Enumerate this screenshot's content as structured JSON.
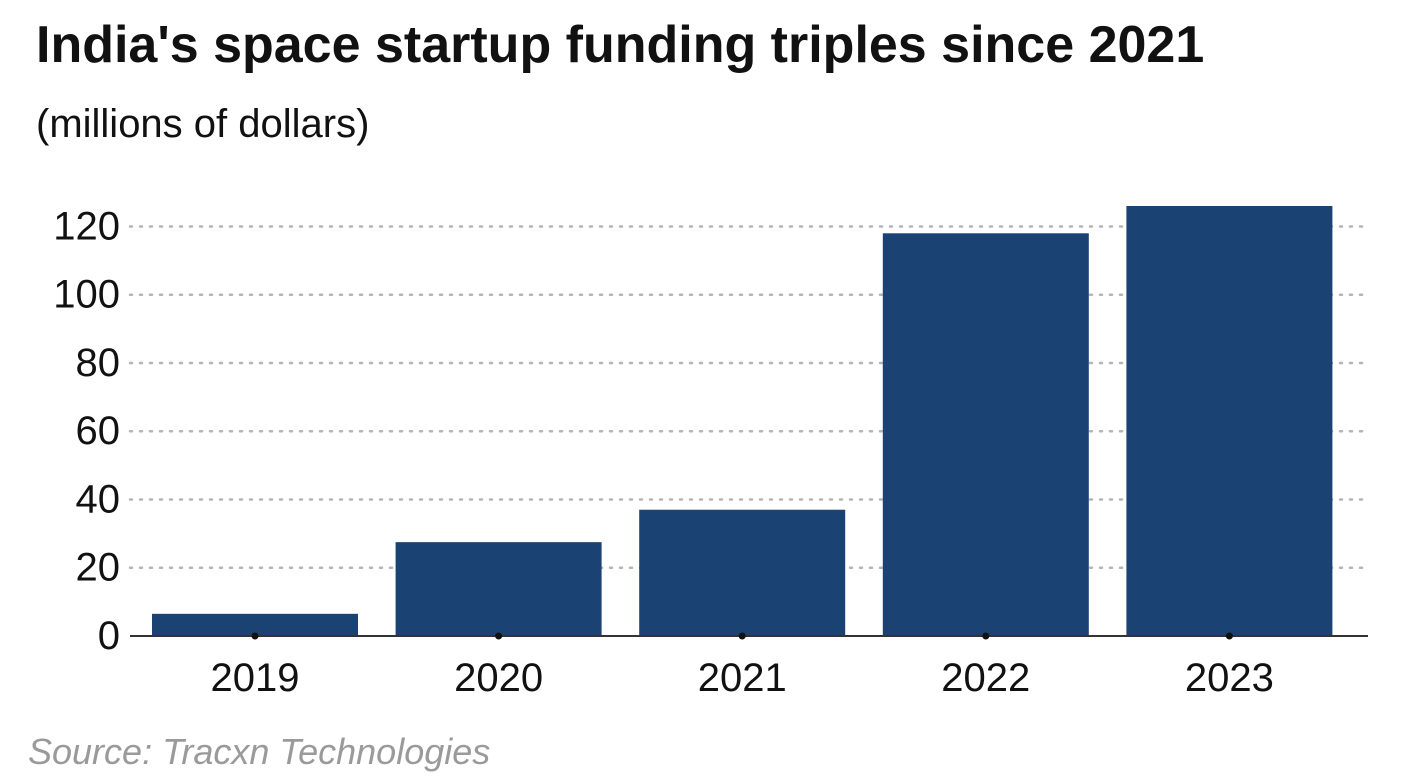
{
  "chart_data": {
    "type": "bar",
    "title": "India's space startup funding triples since 2021",
    "subtitle": "(millions of dollars)",
    "source": "Source: Tracxn Technologies",
    "categories": [
      "2019",
      "2020",
      "2021",
      "2022",
      "2023"
    ],
    "values": [
      6.5,
      27.5,
      37,
      118,
      126
    ],
    "yticks": [
      0,
      20,
      40,
      60,
      80,
      100,
      120
    ],
    "ylim": [
      0,
      126
    ],
    "xlabel": "",
    "ylabel": "",
    "grid": "dotted horizontal",
    "bar_color": "#1a4272",
    "grid_color": "#b5b5b5",
    "axis_color": "#333333"
  }
}
